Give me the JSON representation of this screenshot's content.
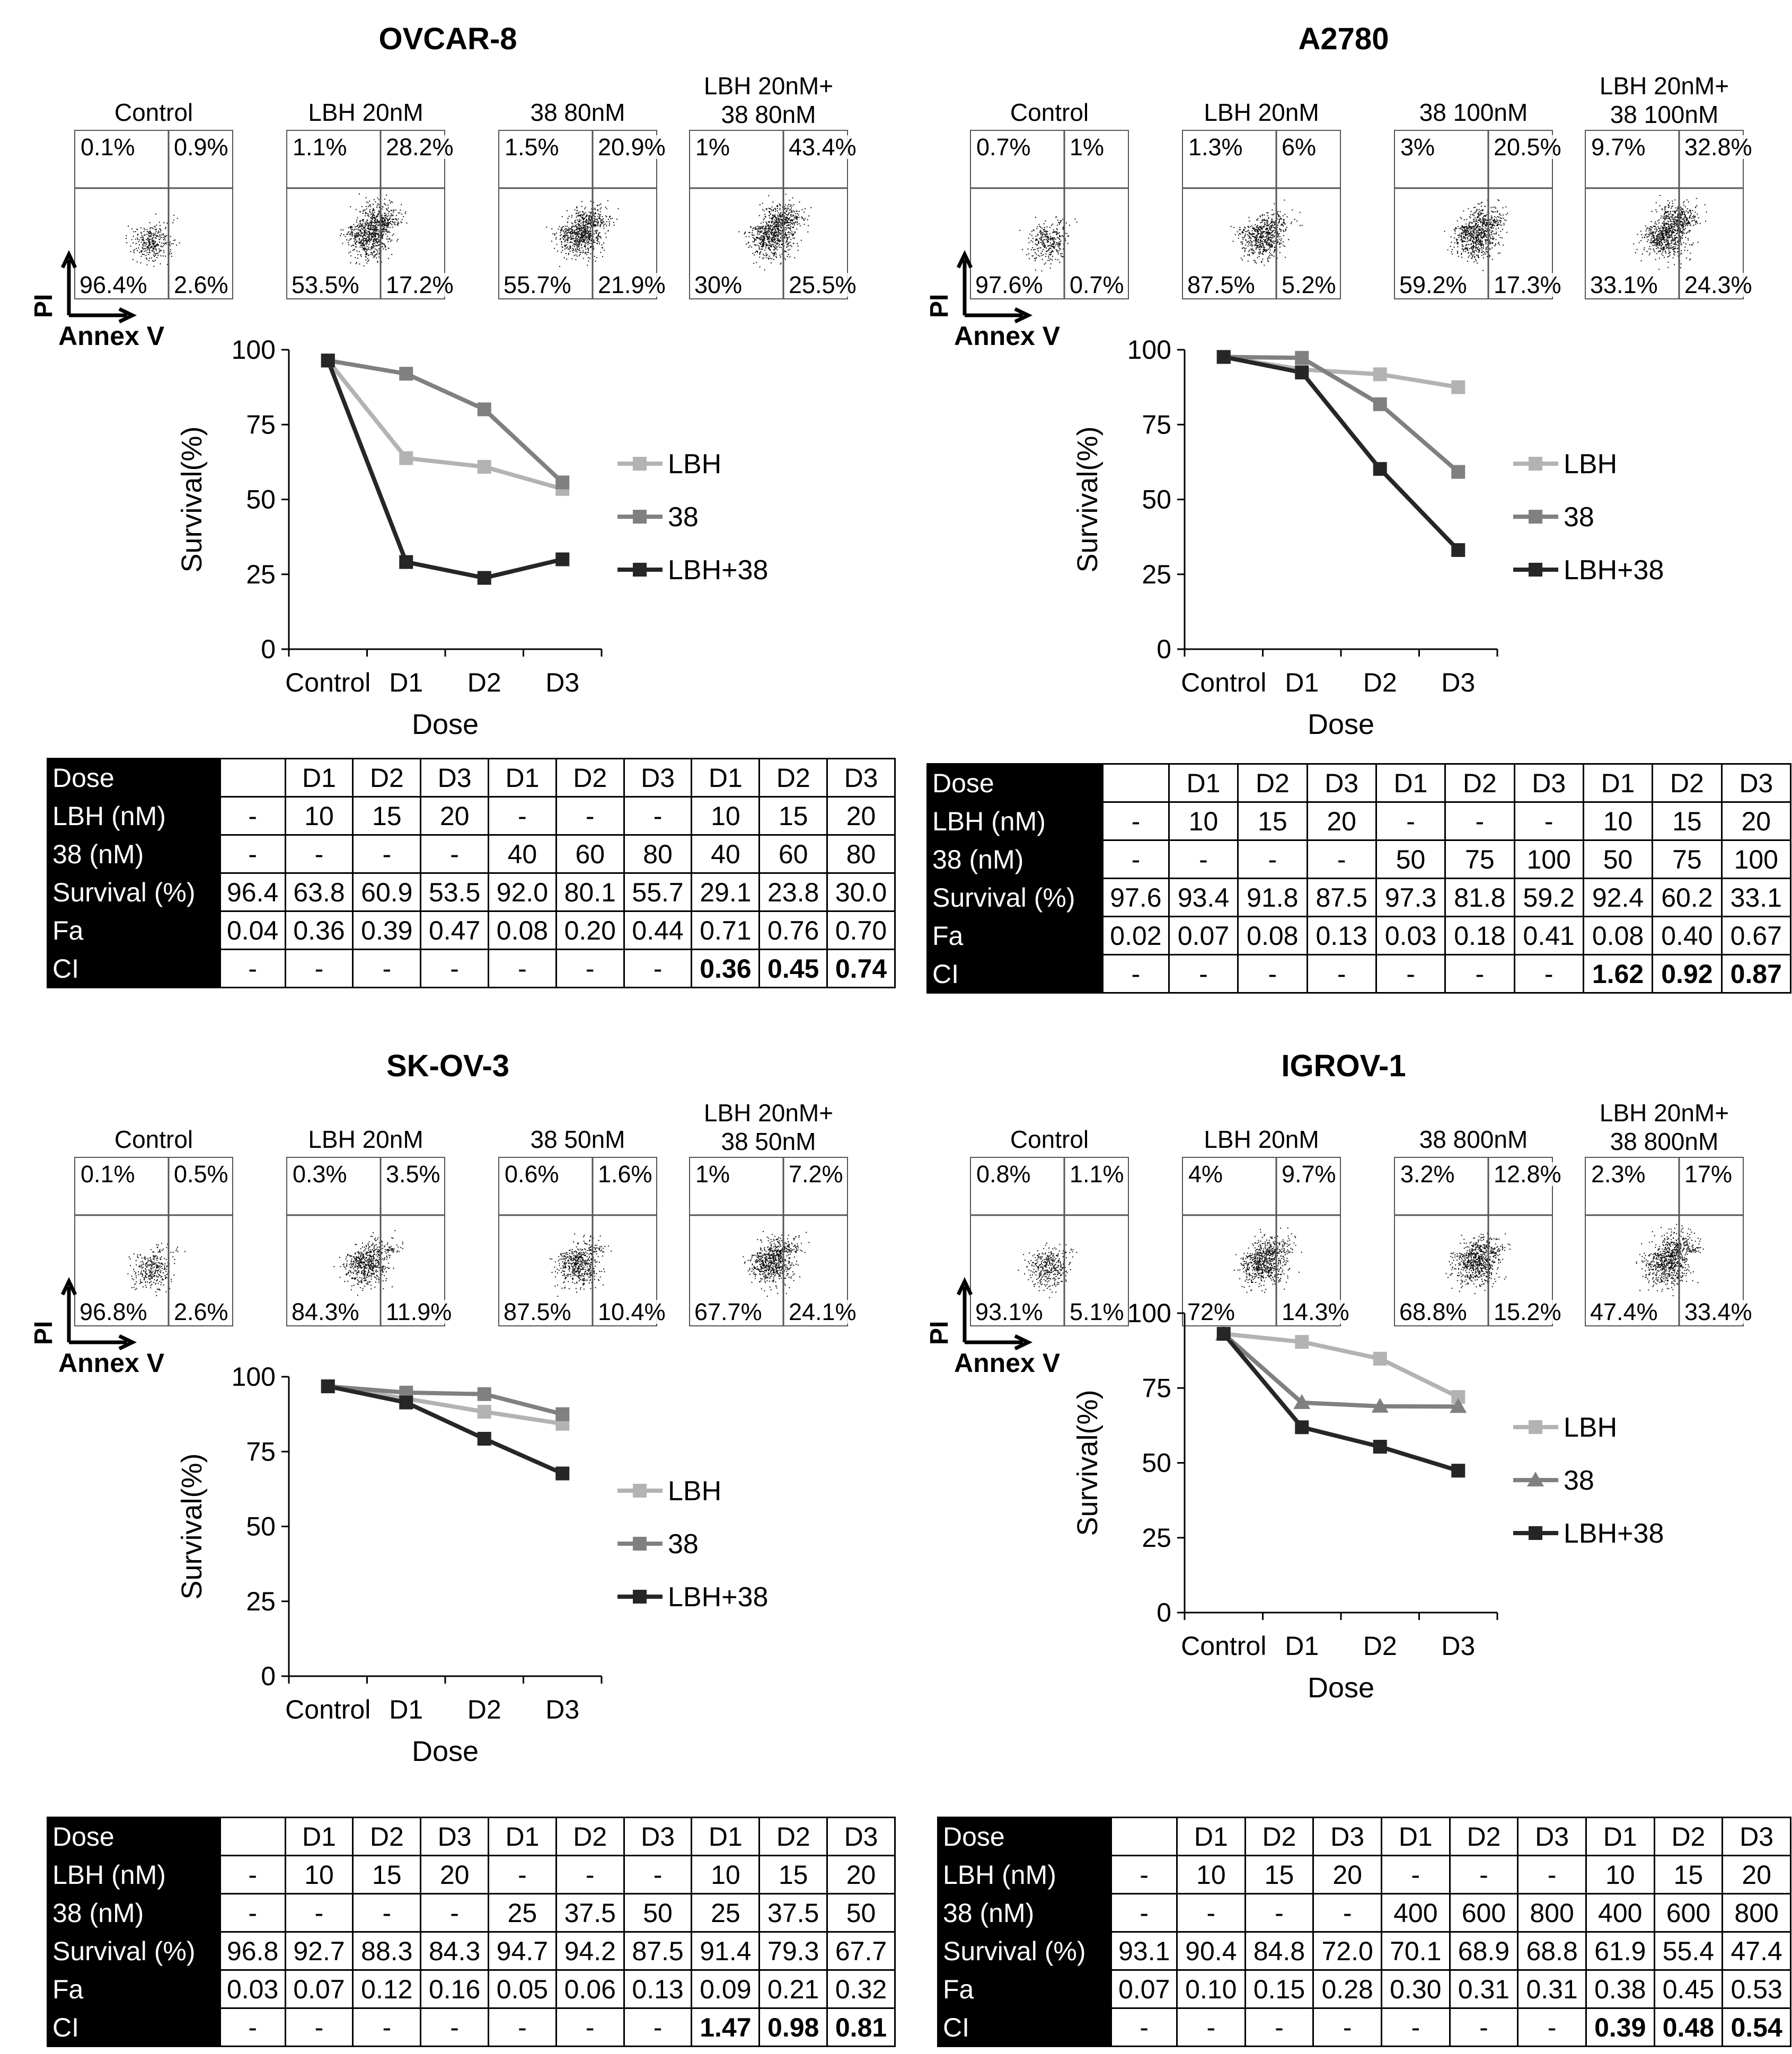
{
  "panels": [
    {
      "title": "OVCAR-8",
      "flow": [
        {
          "label": "Control",
          "q": [
            "0.1%",
            "0.9%",
            "96.4%",
            "2.6%"
          ],
          "density": 0.35
        },
        {
          "label": "LBH 20nM",
          "q": [
            "1.1%",
            "28.2%",
            "53.5%",
            "17.2%"
          ],
          "density": 1.0
        },
        {
          "label": "38 80nM",
          "q": [
            "1.5%",
            "20.9%",
            "55.7%",
            "21.9%"
          ],
          "density": 0.9
        },
        {
          "label": "LBH 20nM+\n38 80nM",
          "q": [
            "1%",
            "43.4%",
            "30%",
            "25.5%"
          ],
          "density": 1.0
        }
      ],
      "axis_y": "PI",
      "axis_x": "Annex V",
      "table": {
        "rows": [
          {
            "label": "Dose",
            "cells": [
              "",
              "D1",
              "D2",
              "D3",
              "D1",
              "D2",
              "D3",
              "D1",
              "D2",
              "D3"
            ]
          },
          {
            "label": "LBH (nM)",
            "cells": [
              "-",
              "10",
              "15",
              "20",
              "-",
              "-",
              "-",
              "10",
              "15",
              "20"
            ]
          },
          {
            "label": "38 (nM)",
            "cells": [
              "-",
              "-",
              "-",
              "-",
              "40",
              "60",
              "80",
              "40",
              "60",
              "80"
            ]
          },
          {
            "label": "Survival (%)",
            "cells": [
              "96.4",
              "63.8",
              "60.9",
              "53.5",
              "92.0",
              "80.1",
              "55.7",
              "29.1",
              "23.8",
              "30.0"
            ]
          },
          {
            "label": "Fa",
            "cells": [
              "0.04",
              "0.36",
              "0.39",
              "0.47",
              "0.08",
              "0.20",
              "0.44",
              "0.71",
              "0.76",
              "0.70"
            ]
          },
          {
            "label": "CI",
            "cells": [
              "-",
              "-",
              "-",
              "-",
              "-",
              "-",
              "-",
              "0.36",
              "0.45",
              "0.74"
            ]
          }
        ]
      }
    },
    {
      "title": "A2780",
      "flow": [
        {
          "label": "Control",
          "q": [
            "0.7%",
            "1%",
            "97.6%",
            "0.7%"
          ],
          "density": 0.35
        },
        {
          "label": "LBH 20nM",
          "q": [
            "1.3%",
            "6%",
            "87.5%",
            "5.2%"
          ],
          "density": 0.7
        },
        {
          "label": "38 100nM",
          "q": [
            "3%",
            "20.5%",
            "59.2%",
            "17.3%"
          ],
          "density": 0.9
        },
        {
          "label": "LBH 20nM+\n38 100nM",
          "q": [
            "9.7%",
            "32.8%",
            "33.1%",
            "24.3%"
          ],
          "density": 1.0
        }
      ],
      "axis_y": "PI",
      "axis_x": "Annex V",
      "table": {
        "rows": [
          {
            "label": "Dose",
            "cells": [
              "",
              "D1",
              "D2",
              "D3",
              "D1",
              "D2",
              "D3",
              "D1",
              "D2",
              "D3"
            ]
          },
          {
            "label": "LBH (nM)",
            "cells": [
              "-",
              "10",
              "15",
              "20",
              "-",
              "-",
              "-",
              "10",
              "15",
              "20"
            ]
          },
          {
            "label": "38 (nM)",
            "cells": [
              "-",
              "-",
              "-",
              "-",
              "50",
              "75",
              "100",
              "50",
              "75",
              "100"
            ]
          },
          {
            "label": "Survival (%)",
            "cells": [
              "97.6",
              "93.4",
              "91.8",
              "87.5",
              "97.3",
              "81.8",
              "59.2",
              "92.4",
              "60.2",
              "33.1"
            ]
          },
          {
            "label": "Fa",
            "cells": [
              "0.02",
              "0.07",
              "0.08",
              "0.13",
              "0.03",
              "0.18",
              "0.41",
              "0.08",
              "0.40",
              "0.67"
            ]
          },
          {
            "label": "CI",
            "cells": [
              "-",
              "-",
              "-",
              "-",
              "-",
              "-",
              "-",
              "1.62",
              "0.92",
              "0.87"
            ]
          }
        ]
      }
    },
    {
      "title": "SK-OV-3",
      "flow": [
        {
          "label": "Control",
          "q": [
            "0.1%",
            "0.5%",
            "96.8%",
            "2.6%"
          ],
          "density": 0.35
        },
        {
          "label": "LBH 20nM",
          "q": [
            "0.3%",
            "3.5%",
            "84.3%",
            "11.9%"
          ],
          "density": 0.7
        },
        {
          "label": "38 50nM",
          "q": [
            "0.6%",
            "1.6%",
            "87.5%",
            "10.4%"
          ],
          "density": 0.6
        },
        {
          "label": "LBH 20nM+\n38 50nM",
          "q": [
            "1%",
            "7.2%",
            "67.7%",
            "24.1%"
          ],
          "density": 0.8
        }
      ],
      "axis_y": "PI",
      "axis_x": "Annex V",
      "table": {
        "rows": [
          {
            "label": "Dose",
            "cells": [
              "",
              "D1",
              "D2",
              "D3",
              "D1",
              "D2",
              "D3",
              "D1",
              "D2",
              "D3"
            ]
          },
          {
            "label": "LBH (nM)",
            "cells": [
              "-",
              "10",
              "15",
              "20",
              "-",
              "-",
              "-",
              "10",
              "15",
              "20"
            ]
          },
          {
            "label": "38 (nM)",
            "cells": [
              "-",
              "-",
              "-",
              "-",
              "25",
              "37.5",
              "50",
              "25",
              "37.5",
              "50"
            ]
          },
          {
            "label": "Survival (%)",
            "cells": [
              "96.8",
              "92.7",
              "88.3",
              "84.3",
              "94.7",
              "94.2",
              "87.5",
              "91.4",
              "79.3",
              "67.7"
            ]
          },
          {
            "label": "Fa",
            "cells": [
              "0.03",
              "0.07",
              "0.12",
              "0.16",
              "0.05",
              "0.06",
              "0.13",
              "0.09",
              "0.21",
              "0.32"
            ]
          },
          {
            "label": "CI",
            "cells": [
              "-",
              "-",
              "-",
              "-",
              "-",
              "-",
              "-",
              "1.47",
              "0.98",
              "0.81"
            ]
          }
        ]
      }
    },
    {
      "title": "IGROV-1",
      "flow": [
        {
          "label": "Control",
          "q": [
            "0.8%",
            "1.1%",
            "93.1%",
            "5.1%"
          ],
          "density": 0.4
        },
        {
          "label": "LBH 20nM",
          "q": [
            "4%",
            "9.7%",
            "72%",
            "14.3%"
          ],
          "density": 0.8
        },
        {
          "label": "38 800nM",
          "q": [
            "3.2%",
            "12.8%",
            "68.8%",
            "15.2%"
          ],
          "density": 0.8
        },
        {
          "label": "LBH 20nM+\n38 800nM",
          "q": [
            "2.3%",
            "17%",
            "47.4%",
            "33.4%"
          ],
          "density": 0.9
        }
      ],
      "axis_y": "PI",
      "axis_x": "Annex V",
      "table": {
        "rows": [
          {
            "label": "Dose",
            "cells": [
              "",
              "D1",
              "D2",
              "D3",
              "D1",
              "D2",
              "D3",
              "D1",
              "D2",
              "D3"
            ]
          },
          {
            "label": "LBH (nM)",
            "cells": [
              "-",
              "10",
              "15",
              "20",
              "-",
              "-",
              "-",
              "10",
              "15",
              "20"
            ]
          },
          {
            "label": "38 (nM)",
            "cells": [
              "-",
              "-",
              "-",
              "-",
              "400",
              "600",
              "800",
              "400",
              "600",
              "800"
            ]
          },
          {
            "label": "Survival (%)",
            "cells": [
              "93.1",
              "90.4",
              "84.8",
              "72.0",
              "70.1",
              "68.9",
              "68.8",
              "61.9",
              "55.4",
              "47.4"
            ]
          },
          {
            "label": "Fa",
            "cells": [
              "0.07",
              "0.10",
              "0.15",
              "0.28",
              "0.30",
              "0.31",
              "0.31",
              "0.38",
              "0.45",
              "0.53"
            ]
          },
          {
            "label": "CI",
            "cells": [
              "-",
              "-",
              "-",
              "-",
              "-",
              "-",
              "-",
              "0.39",
              "0.48",
              "0.54"
            ]
          }
        ]
      }
    }
  ],
  "chart_data": [
    {
      "type": "line",
      "title": "OVCAR-8",
      "categories": [
        "Control",
        "D1",
        "D2",
        "D3"
      ],
      "xlabel": "Dose",
      "ylabel": "Survival(%)",
      "ylim": [
        0,
        100
      ],
      "yticks": [
        0,
        25,
        50,
        75,
        100
      ],
      "legend": "right",
      "series": [
        {
          "name": "LBH",
          "color": "#b3b3b3",
          "marker": "square",
          "values": [
            96.4,
            63.8,
            60.9,
            53.5
          ]
        },
        {
          "name": "38",
          "color": "#808080",
          "marker": "square",
          "values": [
            96.4,
            92.0,
            80.1,
            55.7
          ]
        },
        {
          "name": "LBH+38",
          "color": "#262626",
          "marker": "square",
          "values": [
            96.4,
            29.1,
            23.8,
            30.0
          ]
        }
      ]
    },
    {
      "type": "line",
      "title": "A2780",
      "categories": [
        "Control",
        "D1",
        "D2",
        "D3"
      ],
      "xlabel": "Dose",
      "ylabel": "Survival(%)",
      "ylim": [
        0,
        100
      ],
      "yticks": [
        0,
        25,
        50,
        75,
        100
      ],
      "legend": "right",
      "series": [
        {
          "name": "LBH",
          "color": "#b3b3b3",
          "marker": "square",
          "values": [
            97.6,
            93.4,
            91.8,
            87.5
          ]
        },
        {
          "name": "38",
          "color": "#808080",
          "marker": "square",
          "values": [
            97.6,
            97.3,
            81.8,
            59.2
          ]
        },
        {
          "name": "LBH+38",
          "color": "#262626",
          "marker": "square",
          "values": [
            97.6,
            92.4,
            60.2,
            33.1
          ]
        }
      ]
    },
    {
      "type": "line",
      "title": "SK-OV-3",
      "categories": [
        "Control",
        "D1",
        "D2",
        "D3"
      ],
      "xlabel": "Dose",
      "ylabel": "Survival(%)",
      "ylim": [
        0,
        100
      ],
      "yticks": [
        0,
        25,
        50,
        75,
        100
      ],
      "legend": "right",
      "series": [
        {
          "name": "LBH",
          "color": "#b3b3b3",
          "marker": "square",
          "values": [
            96.8,
            92.7,
            88.3,
            84.3
          ]
        },
        {
          "name": "38",
          "color": "#808080",
          "marker": "square",
          "values": [
            96.8,
            94.7,
            94.2,
            87.5
          ]
        },
        {
          "name": "LBH+38",
          "color": "#262626",
          "marker": "square",
          "values": [
            96.8,
            91.4,
            79.3,
            67.7
          ]
        }
      ]
    },
    {
      "type": "line",
      "title": "IGROV-1",
      "categories": [
        "Control",
        "D1",
        "D2",
        "D3"
      ],
      "xlabel": "Dose",
      "ylabel": "Survival(%)",
      "ylim": [
        0,
        100
      ],
      "yticks": [
        0,
        25,
        50,
        75,
        100
      ],
      "legend": "right",
      "series": [
        {
          "name": "LBH",
          "color": "#b3b3b3",
          "marker": "square",
          "values": [
            93.1,
            90.4,
            84.8,
            72.0
          ]
        },
        {
          "name": "38",
          "color": "#808080",
          "marker": "triangle",
          "values": [
            93.1,
            70.1,
            68.9,
            68.8
          ]
        },
        {
          "name": "LBH+38",
          "color": "#262626",
          "marker": "square",
          "values": [
            93.1,
            61.9,
            55.4,
            47.4
          ]
        }
      ]
    }
  ]
}
